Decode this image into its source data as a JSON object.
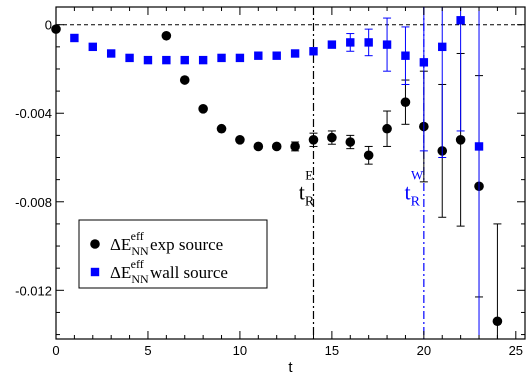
{
  "chart_data": {
    "type": "scatter",
    "xlabel": "t",
    "ylabel": "",
    "xlim": [
      0,
      25.5
    ],
    "ylim": [
      -0.0142,
      0.0008
    ],
    "xticks": [
      0,
      5,
      10,
      15,
      20,
      25
    ],
    "xtick_labels": [
      "0",
      "5",
      "10",
      "15",
      "20",
      "25"
    ],
    "yticks": [
      0,
      -0.004,
      -0.008,
      -0.012
    ],
    "ytick_labels": [
      "0",
      "-0.004",
      "-0.008",
      "-0.012"
    ],
    "grid": false,
    "legend_position": "bottom-left",
    "series": [
      {
        "name": "exp source",
        "legend_label": {
          "base": "ΔE",
          "sub": "NN",
          "sup": "eff",
          "text": "exp source"
        },
        "marker": "circle",
        "color": "#000000",
        "points": [
          {
            "x": 0,
            "y": -0.0002,
            "err": 0
          },
          {
            "x": 6,
            "y": -0.0005,
            "err": 0
          },
          {
            "x": 7,
            "y": -0.0025,
            "err": 0
          },
          {
            "x": 8,
            "y": -0.0038,
            "err": 0
          },
          {
            "x": 9,
            "y": -0.0047,
            "err": 0
          },
          {
            "x": 10,
            "y": -0.0052,
            "err": 0
          },
          {
            "x": 11,
            "y": -0.0055,
            "err": 0
          },
          {
            "x": 12,
            "y": -0.0055,
            "err": 0
          },
          {
            "x": 13,
            "y": -0.0055,
            "err": 0.0002
          },
          {
            "x": 14,
            "y": -0.0052,
            "err": 0.0003
          },
          {
            "x": 15,
            "y": -0.0051,
            "err": 0.0003
          },
          {
            "x": 16,
            "y": -0.0053,
            "err": 0.0003
          },
          {
            "x": 17,
            "y": -0.0059,
            "err": 0.0004
          },
          {
            "x": 18,
            "y": -0.0047,
            "err": 0.0008
          },
          {
            "x": 19,
            "y": -0.0035,
            "err": 0.001
          },
          {
            "x": 20,
            "y": -0.0046,
            "err": 0.0025
          },
          {
            "x": 21,
            "y": -0.0057,
            "err": 0.003
          },
          {
            "x": 22,
            "y": -0.0052,
            "err": 0.0039
          },
          {
            "x": 23,
            "y": -0.0073,
            "err": 0.005
          },
          {
            "x": 24,
            "y": -0.0134,
            "err": 0.0044
          }
        ]
      },
      {
        "name": "wall source",
        "legend_label": {
          "base": "ΔE",
          "sub": "NN",
          "sup": "eff",
          "text": "wall source"
        },
        "marker": "square",
        "color": "#0000ff",
        "points": [
          {
            "x": 1,
            "y": -0.0006,
            "err": 0
          },
          {
            "x": 2,
            "y": -0.001,
            "err": 0
          },
          {
            "x": 3,
            "y": -0.0013,
            "err": 0
          },
          {
            "x": 4,
            "y": -0.0015,
            "err": 0
          },
          {
            "x": 5,
            "y": -0.0016,
            "err": 0
          },
          {
            "x": 6,
            "y": -0.0016,
            "err": 0
          },
          {
            "x": 7,
            "y": -0.0016,
            "err": 0
          },
          {
            "x": 8,
            "y": -0.0016,
            "err": 0
          },
          {
            "x": 9,
            "y": -0.0015,
            "err": 0
          },
          {
            "x": 10,
            "y": -0.0015,
            "err": 0
          },
          {
            "x": 11,
            "y": -0.0014,
            "err": 0
          },
          {
            "x": 12,
            "y": -0.0014,
            "err": 0
          },
          {
            "x": 13,
            "y": -0.0013,
            "err": 0
          },
          {
            "x": 14,
            "y": -0.0012,
            "err": 0
          },
          {
            "x": 15,
            "y": -0.0009,
            "err": 0
          },
          {
            "x": 16,
            "y": -0.0008,
            "err": 0.0004
          },
          {
            "x": 17,
            "y": -0.0008,
            "err": 0.0006
          },
          {
            "x": 18,
            "y": -0.0009,
            "err": 0.0012
          },
          {
            "x": 19,
            "y": -0.0014,
            "err": 0.0013
          },
          {
            "x": 20,
            "y": -0.0017,
            "err": 0.004
          },
          {
            "x": 21,
            "y": -0.001,
            "err": 0.005
          },
          {
            "x": 22,
            "y": 0.0002,
            "err": 0.005
          },
          {
            "x": 23,
            "y": -0.0055,
            "err": 0.01
          }
        ]
      }
    ],
    "reference_lines": [
      {
        "orientation": "horizontal",
        "value": 0,
        "style": "dashed",
        "color": "#000000"
      },
      {
        "orientation": "vertical",
        "value": 14,
        "style": "dashdot",
        "color": "#000000"
      },
      {
        "orientation": "vertical",
        "value": 20,
        "style": "dashdot",
        "color": "#0000ff"
      }
    ],
    "annotations": [
      {
        "base": "t",
        "sub": "R",
        "sup": "E",
        "x": 13.2,
        "y": -0.0079,
        "color": "#000000"
      },
      {
        "base": "t",
        "sub": "R",
        "sup": "W",
        "x": 18.95,
        "y": -0.0079,
        "color": "#0000ff"
      }
    ]
  }
}
